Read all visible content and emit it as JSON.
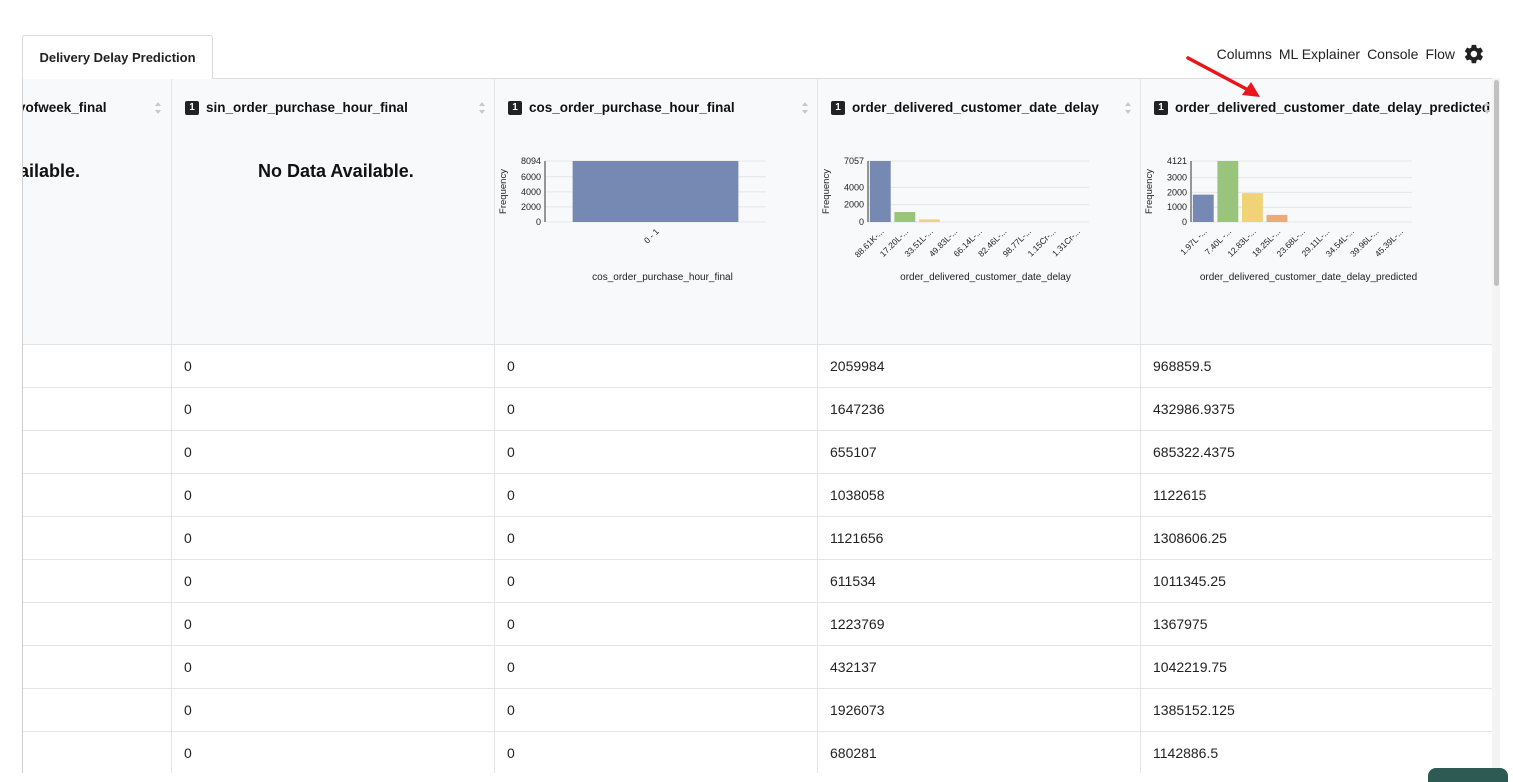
{
  "tab": {
    "label": "Delivery Delay Prediction"
  },
  "nav": {
    "columns": "Columns",
    "ml_explainer": "ML Explainer",
    "console": "Console",
    "flow": "Flow"
  },
  "columns": [
    {
      "key": "c0",
      "title": "yofweek_final",
      "badge": "",
      "no_data": "ailable.",
      "values": [
        "",
        "",
        "",
        "",
        "",
        "",
        "",
        "",
        "",
        ""
      ]
    },
    {
      "key": "c1",
      "title": "sin_order_purchase_hour_final",
      "badge": "1",
      "no_data": "No Data Available.",
      "values": [
        "0",
        "0",
        "0",
        "0",
        "0",
        "0",
        "0",
        "0",
        "0",
        "0"
      ]
    },
    {
      "key": "c2",
      "title": "cos_order_purchase_hour_final",
      "badge": "1",
      "values": [
        "0",
        "0",
        "0",
        "0",
        "0",
        "0",
        "0",
        "0",
        "0",
        "0"
      ],
      "chart": {
        "type": "bar",
        "ylabel": "Frequency",
        "xlabel": "cos_order_purchase_hour_final",
        "yticks": [
          0,
          2000,
          4000,
          6000,
          8094
        ],
        "ymax": 8094,
        "categories": [
          "0 - 1"
        ],
        "values": [
          8094
        ],
        "colors": [
          "#7589b2"
        ]
      }
    },
    {
      "key": "c3",
      "title": "order_delivered_customer_date_delay",
      "badge": "1",
      "values": [
        "2059984",
        "1647236",
        "655107",
        "1038058",
        "1121656",
        "611534",
        "1223769",
        "432137",
        "1926073",
        "680281"
      ],
      "chart": {
        "type": "bar",
        "ylabel": "Frequency",
        "xlabel": "order_delivered_customer_date_delay",
        "yticks": [
          0,
          2000,
          4000,
          7057
        ],
        "ymax": 7057,
        "categories": [
          "88.61K-...",
          "17.20L-...",
          "33.51L-...",
          "49.83L-...",
          "66.14L-...",
          "82.46L-...",
          "98.77L-...",
          "1.15Cr-...",
          "1.31Cr-..."
        ],
        "values": [
          7057,
          1150,
          300,
          0,
          0,
          0,
          0,
          0,
          0
        ],
        "colors": [
          "#7589b2",
          "#99c47b",
          "#f0d277",
          "#7589b2",
          "#7589b2",
          "#7589b2",
          "#7589b2",
          "#7589b2",
          "#7589b2"
        ]
      }
    },
    {
      "key": "c4",
      "title": "order_delivered_customer_date_delay_predicted",
      "badge": "1",
      "values": [
        "968859.5",
        "432986.9375",
        "685322.4375",
        "1122615",
        "1308606.25",
        "1011345.25",
        "1367975",
        "1042219.75",
        "1385152.125",
        "1142886.5"
      ],
      "chart": {
        "type": "bar",
        "ylabel": "Frequency",
        "xlabel": "order_delivered_customer_date_delay_predicted",
        "yticks": [
          0,
          1000,
          2000,
          3000,
          4121
        ],
        "ymax": 4121,
        "categories": [
          "1.97L -...",
          "7.40L -...",
          "12.83L-...",
          "18.25L-...",
          "23.68L-...",
          "29.11L-...",
          "34.54L-...",
          "39.96L-...",
          "45.39L-..."
        ],
        "values": [
          1850,
          4121,
          1950,
          480,
          0,
          0,
          0,
          0,
          0
        ],
        "colors": [
          "#7589b2",
          "#99c47b",
          "#f0d277",
          "#eea97a",
          "#7589b2",
          "#7589b2",
          "#7589b2",
          "#7589b2",
          "#7589b2"
        ]
      }
    }
  ]
}
